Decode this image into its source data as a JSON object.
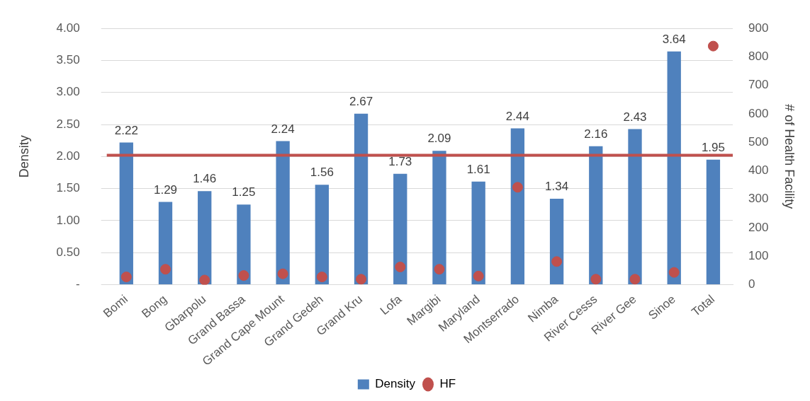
{
  "chart_data": {
    "type": "bar",
    "ylabel": "Density",
    "y2label": "# of Health Facility",
    "categories": [
      "Bomi",
      "Bong",
      "Gbarpolu",
      "Grand Bassa",
      "Grand Cape Mount",
      "Grand Gedeh",
      "Grand Kru",
      "Lofa",
      "Margibi",
      "Maryland",
      "Montserrado",
      "Nimba",
      "River Cesss",
      "River Gee",
      "Sinoe",
      "Total"
    ],
    "series": [
      {
        "name": "Density",
        "color": "#4f81bd",
        "values": [
          2.22,
          1.29,
          1.46,
          1.25,
          2.24,
          1.56,
          2.67,
          1.73,
          2.09,
          1.61,
          2.44,
          1.34,
          2.16,
          2.43,
          3.64,
          1.95
        ],
        "value_labels": [
          "2.22",
          "1.29",
          "1.46",
          "1.25",
          "2.24",
          "1.56",
          "2.67",
          "1.73",
          "2.09",
          "1.61",
          "2.44",
          "1.34",
          "2.16",
          "2.43",
          "3.64",
          "1.95"
        ]
      },
      {
        "name": "HF",
        "type": "scatter",
        "axis": "y2",
        "color": "#c0504d",
        "values": [
          27,
          54,
          16,
          32,
          38,
          27,
          19,
          62,
          54,
          30,
          342,
          81,
          19,
          19,
          43,
          838
        ]
      }
    ],
    "ylim": [
      0,
      4
    ],
    "yticks": [
      {
        "value": 0,
        "label": "-"
      },
      {
        "value": 0.5,
        "label": "0.50"
      },
      {
        "value": 1,
        "label": "1.00"
      },
      {
        "value": 1.5,
        "label": "1.50"
      },
      {
        "value": 2,
        "label": "2.00"
      },
      {
        "value": 2.5,
        "label": "2.50"
      },
      {
        "value": 3,
        "label": "3.00"
      },
      {
        "value": 3.5,
        "label": "3.50"
      },
      {
        "value": 4,
        "label": "4.00"
      }
    ],
    "y2lim": [
      0,
      900
    ],
    "y2ticks": [
      0,
      100,
      200,
      300,
      400,
      500,
      600,
      700,
      800,
      900
    ],
    "ref_lines": [
      {
        "axis": "y",
        "value": 2.02,
        "color": "#c0504d"
      }
    ],
    "grid": "y",
    "legend": "bottom",
    "marker": "circle"
  }
}
